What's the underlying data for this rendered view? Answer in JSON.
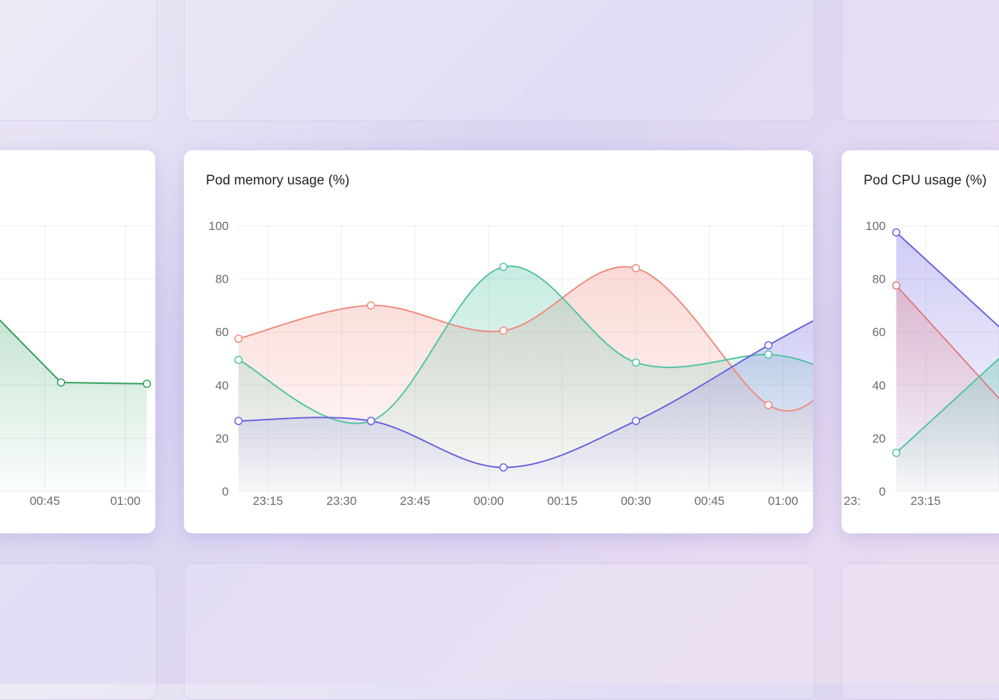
{
  "cards": [
    {
      "title": "",
      "chart_data": {
        "type": "area",
        "title": "",
        "x_ticks": [
          "00:45",
          "01:00"
        ],
        "series": [
          {
            "color": "#2e9e5b",
            "x": [
              "00:30",
              "00:48",
              "01:04"
            ],
            "values": [
              78,
              41,
              40.5
            ]
          }
        ],
        "ylim": [
          0,
          100
        ],
        "grid": true
      }
    },
    {
      "title": "Pod memory usage (%)",
      "chart_data": {
        "type": "area",
        "title": "Pod memory usage (%)",
        "x_ticks": [
          "23:15",
          "23:30",
          "23:45",
          "00:00",
          "00:15",
          "00:30",
          "00:45",
          "01:00"
        ],
        "y_ticks": [
          0,
          20,
          40,
          60,
          80,
          100
        ],
        "ylim": [
          0,
          100
        ],
        "grid": true,
        "series": [
          {
            "color": "#f08a7e",
            "x": [
              "23:09",
              "23:36",
              "00:03",
              "00:30",
              "00:57",
              "01:10"
            ],
            "values": [
              57.5,
              70,
              60.5,
              84,
              32.5,
              40
            ]
          },
          {
            "color": "#4fc3a4",
            "x": [
              "23:09",
              "23:36",
              "00:03",
              "00:30",
              "00:57",
              "01:10"
            ],
            "values": [
              49.5,
              26.5,
              84.5,
              48.5,
              51.5,
              45
            ]
          },
          {
            "color": "#6a60e0",
            "x": [
              "23:09",
              "23:36",
              "00:03",
              "00:30",
              "00:57",
              "01:10"
            ],
            "values": [
              26.5,
              26.5,
              9,
              26.5,
              55,
              68
            ]
          }
        ]
      }
    },
    {
      "title": "Pod CPU usage (%)",
      "chart_data": {
        "type": "area",
        "title": "Pod CPU usage (%)",
        "x_ticks": [
          "23:15",
          "23:"
        ],
        "y_ticks": [
          0,
          20,
          40,
          60,
          80,
          100
        ],
        "ylim": [
          0,
          100
        ],
        "grid": true,
        "series": [
          {
            "color": "#6a60e0",
            "x": [
              "23:09",
              "23:30"
            ],
            "values": [
              97.5,
              62
            ]
          },
          {
            "color": "#e27a80",
            "x": [
              "23:09",
              "23:30"
            ],
            "values": [
              77.5,
              35
            ]
          },
          {
            "color": "#4fc3a4",
            "x": [
              "23:09",
              "23:30"
            ],
            "values": [
              14.5,
              50
            ]
          }
        ]
      }
    }
  ]
}
